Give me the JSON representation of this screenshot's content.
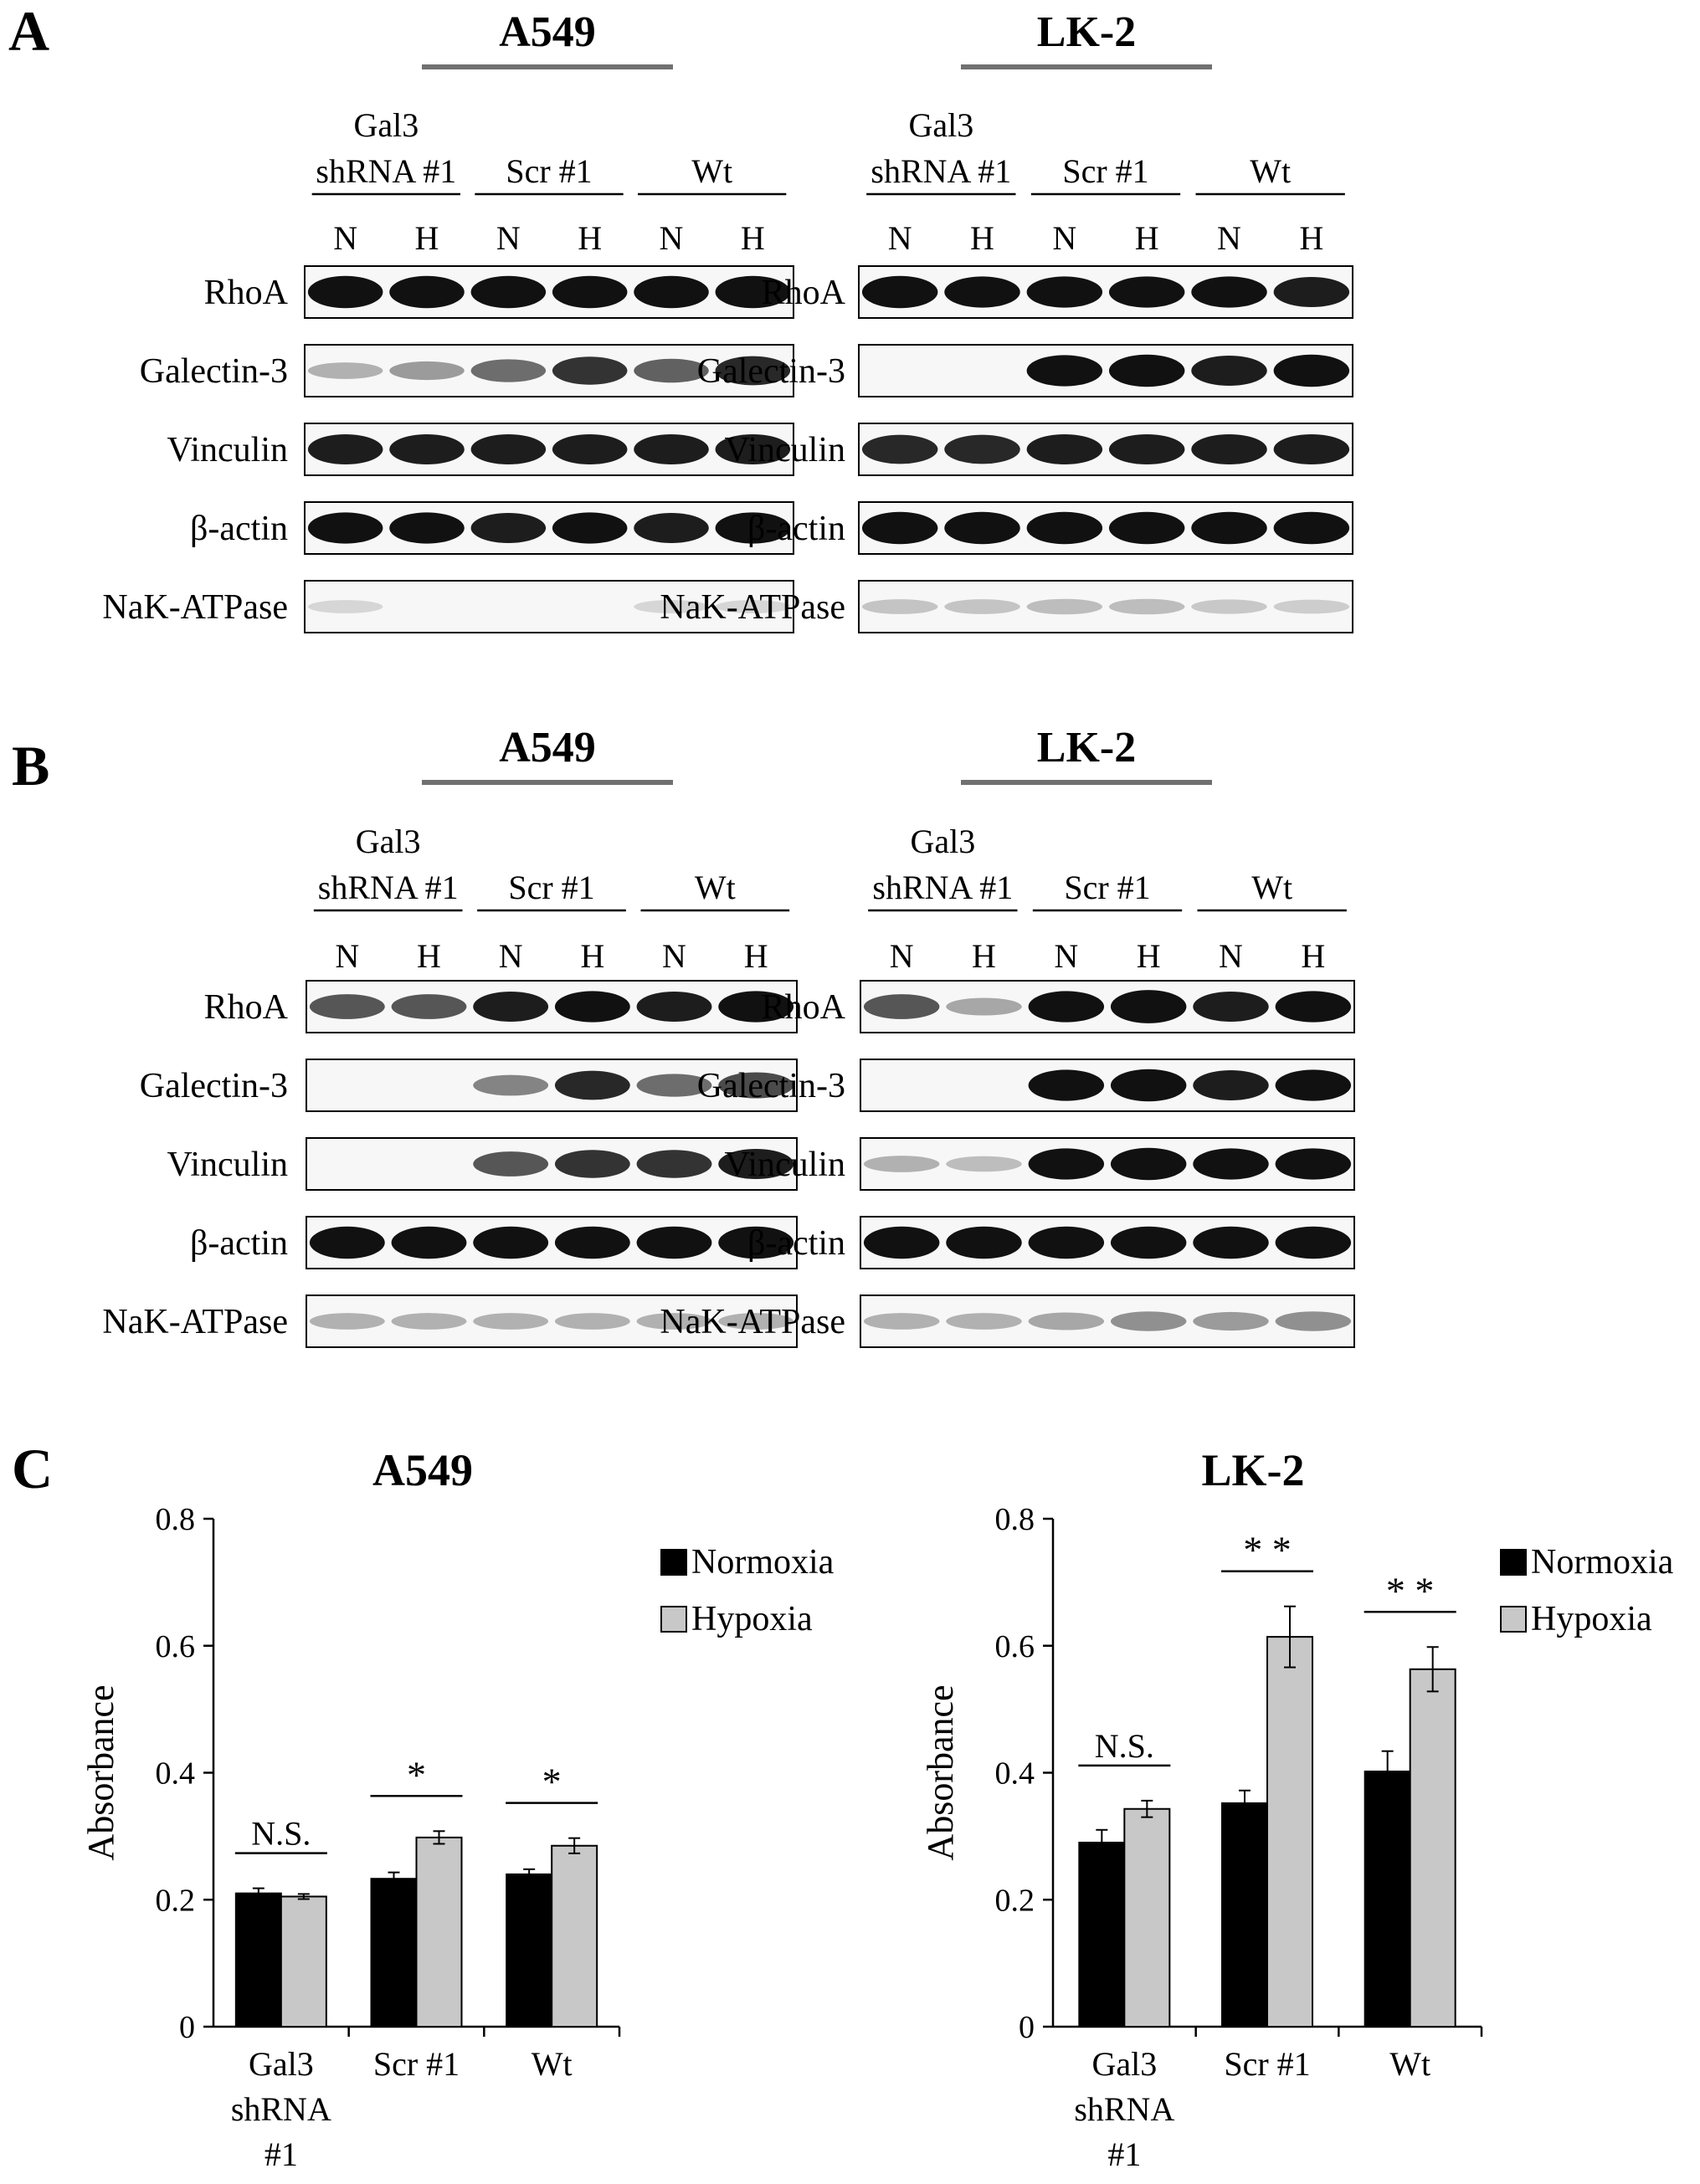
{
  "panel_a": {
    "letter": "A",
    "left": {
      "cell_line": "A549",
      "groups": [
        {
          "line1": "Gal3",
          "line2": "shRNA #1"
        },
        {
          "line1": "",
          "line2": "Scr #1"
        },
        {
          "line1": "",
          "line2": "Wt"
        }
      ],
      "lanes": [
        "N",
        "H",
        "N",
        "H",
        "N",
        "H"
      ],
      "rows": [
        {
          "label": "RhoA",
          "intensity": [
            0.95,
            0.95,
            0.95,
            0.95,
            0.95,
            0.95
          ]
        },
        {
          "label": "Galectin-3",
          "intensity": [
            0.2,
            0.3,
            0.5,
            0.75,
            0.55,
            0.8
          ]
        },
        {
          "label": "Vinculin",
          "intensity": [
            0.85,
            0.85,
            0.85,
            0.85,
            0.85,
            0.85
          ]
        },
        {
          "label": "β-actin",
          "intensity": [
            0.9,
            0.9,
            0.85,
            0.9,
            0.85,
            0.9
          ]
        },
        {
          "label": "NaK-ATPase",
          "intensity": [
            0.04,
            0,
            0,
            0,
            0.04,
            0.04
          ]
        }
      ]
    },
    "right": {
      "cell_line": "LK-2",
      "groups": [
        {
          "line1": "Gal3",
          "line2": "shRNA #1"
        },
        {
          "line1": "",
          "line2": "Scr #1"
        },
        {
          "line1": "",
          "line2": "Wt"
        }
      ],
      "lanes": [
        "N",
        "H",
        "N",
        "H",
        "N",
        "H"
      ],
      "rows": [
        {
          "label": "RhoA",
          "intensity": [
            0.95,
            0.9,
            0.9,
            0.9,
            0.9,
            0.85
          ]
        },
        {
          "label": "Galectin-3",
          "intensity": [
            0,
            0,
            0.9,
            0.95,
            0.85,
            0.95
          ]
        },
        {
          "label": "Vinculin",
          "intensity": [
            0.8,
            0.8,
            0.85,
            0.85,
            0.85,
            0.85
          ]
        },
        {
          "label": "β-actin",
          "intensity": [
            0.95,
            0.95,
            0.95,
            0.95,
            0.95,
            0.95
          ]
        },
        {
          "label": "NaK-ATPase",
          "intensity": [
            0.12,
            0.12,
            0.15,
            0.15,
            0.1,
            0.08
          ]
        }
      ]
    }
  },
  "panel_b": {
    "letter": "B",
    "left": {
      "cell_line": "A549",
      "groups": [
        {
          "line1": "Gal3",
          "line2": "shRNA #1"
        },
        {
          "line1": "",
          "line2": "Scr #1"
        },
        {
          "line1": "",
          "line2": "Wt"
        }
      ],
      "lanes": [
        "N",
        "H",
        "N",
        "H",
        "N",
        "H"
      ],
      "rows": [
        {
          "label": "RhoA",
          "intensity": [
            0.6,
            0.6,
            0.85,
            0.9,
            0.85,
            0.9
          ]
        },
        {
          "label": "Galectin-3",
          "intensity": [
            0,
            0,
            0.4,
            0.8,
            0.5,
            0.65
          ]
        },
        {
          "label": "Vinculin",
          "intensity": [
            0,
            0,
            0.6,
            0.75,
            0.75,
            0.85
          ]
        },
        {
          "label": "β-actin",
          "intensity": [
            0.95,
            0.95,
            0.95,
            0.95,
            0.95,
            0.95
          ]
        },
        {
          "label": "NaK-ATPase",
          "intensity": [
            0.2,
            0.2,
            0.2,
            0.2,
            0.2,
            0.2
          ]
        }
      ]
    },
    "right": {
      "cell_line": "LK-2",
      "groups": [
        {
          "line1": "Gal3",
          "line2": "shRNA #1"
        },
        {
          "line1": "",
          "line2": "Scr #1"
        },
        {
          "line1": "",
          "line2": "Wt"
        }
      ],
      "lanes": [
        "N",
        "H",
        "N",
        "H",
        "N",
        "H"
      ],
      "rows": [
        {
          "label": "RhoA",
          "intensity": [
            0.6,
            0.25,
            0.9,
            1,
            0.85,
            0.9
          ]
        },
        {
          "label": "Galectin-3",
          "intensity": [
            0,
            0,
            0.9,
            0.95,
            0.85,
            0.9
          ]
        },
        {
          "label": "Vinculin",
          "intensity": [
            0.2,
            0.15,
            0.9,
            0.95,
            0.9,
            0.9
          ]
        },
        {
          "label": "β-actin",
          "intensity": [
            0.95,
            0.95,
            0.95,
            0.95,
            0.95,
            0.95
          ]
        },
        {
          "label": "NaK-ATPase",
          "intensity": [
            0.2,
            0.2,
            0.25,
            0.35,
            0.3,
            0.35
          ]
        }
      ]
    }
  },
  "panel_c": {
    "letter": "C"
  },
  "chart_data": [
    {
      "type": "bar",
      "title": "A549",
      "xlabel": "",
      "ylabel": "Absorbance",
      "ylim": [
        0,
        0.8
      ],
      "yticks": [
        "0",
        "0.2",
        "0.4",
        "0.6",
        "0.8"
      ],
      "grid": false,
      "legend": "top-right",
      "categories": [
        [
          "Gal3",
          "shRNA",
          "#1"
        ],
        [
          "Scr #1"
        ],
        [
          "Wt"
        ]
      ],
      "series": [
        {
          "name": "Normoxia",
          "color": "#000000",
          "values": [
            0.21,
            0.233,
            0.24
          ],
          "errors": [
            0.008,
            0.01,
            0.008
          ]
        },
        {
          "name": "Hypoxia",
          "color": "#c8c8c8",
          "values": [
            0.205,
            0.298,
            0.285
          ],
          "errors": [
            0.004,
            0.01,
            0.012
          ]
        }
      ],
      "annotations": [
        "N.S.",
        "*",
        "*"
      ]
    },
    {
      "type": "bar",
      "title": "LK-2",
      "xlabel": "",
      "ylabel": "Absorbance",
      "ylim": [
        0,
        0.8
      ],
      "yticks": [
        "0",
        "0.2",
        "0.4",
        "0.6",
        "0.8"
      ],
      "grid": false,
      "legend": "top-right",
      "categories": [
        [
          "Gal3",
          "shRNA",
          "#1"
        ],
        [
          "Scr #1"
        ],
        [
          "Wt"
        ]
      ],
      "series": [
        {
          "name": "Normoxia",
          "color": "#000000",
          "values": [
            0.29,
            0.352,
            0.402
          ],
          "errors": [
            0.02,
            0.02,
            0.032
          ]
        },
        {
          "name": "Hypoxia",
          "color": "#c8c8c8",
          "values": [
            0.343,
            0.614,
            0.563
          ],
          "errors": [
            0.013,
            0.048,
            0.035
          ]
        }
      ],
      "annotations": [
        "N.S.",
        "* *",
        "* *"
      ]
    }
  ]
}
